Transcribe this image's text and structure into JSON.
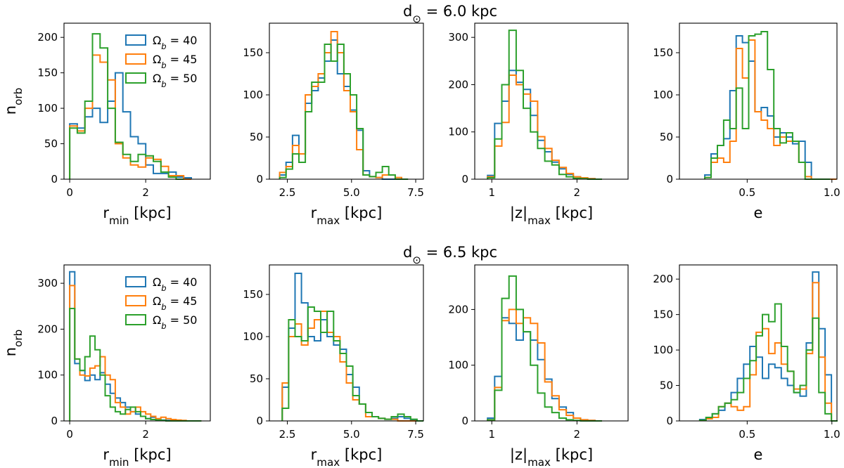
{
  "figure": {
    "row_titles": [
      {
        "prefix": "d",
        "subscript": "⊙",
        "rest": " = 6.0 kpc"
      },
      {
        "prefix": "d",
        "subscript": "⊙",
        "rest": " = 6.5 kpc"
      }
    ],
    "ylabel": {
      "base": "n",
      "sub": "orb"
    },
    "legend": [
      {
        "base": "Ω",
        "sub": "b",
        "rest": " = 40",
        "color": "#1f77b4"
      },
      {
        "base": "Ω",
        "sub": "b",
        "rest": " = 45",
        "color": "#ff7f0e"
      },
      {
        "base": "Ω",
        "sub": "b",
        "rest": " = 50",
        "color": "#2ca02c"
      }
    ]
  },
  "chart_data": [
    {
      "type": "histogram",
      "row": 0,
      "col": 0,
      "xlabel": {
        "base": "r",
        "sub": "min",
        "rest": " [kpc]"
      },
      "xlim": [
        -0.15,
        3.7
      ],
      "ylim": [
        0,
        220
      ],
      "xticks": [
        {
          "v": 0,
          "label": "0"
        },
        {
          "v": 2,
          "label": "2"
        }
      ],
      "yticks": [
        {
          "v": 0,
          "label": "0"
        },
        {
          "v": 50,
          "label": "50"
        },
        {
          "v": 100,
          "label": "100"
        },
        {
          "v": 150,
          "label": "150"
        },
        {
          "v": 200,
          "label": "200"
        }
      ],
      "legend": true,
      "series": [
        {
          "name": "Ωb = 40",
          "color": "#1f77b4",
          "start": 0,
          "width": 0.2,
          "values": [
            78,
            72,
            88,
            100,
            80,
            110,
            150,
            95,
            60,
            50,
            20,
            8,
            8,
            10,
            3,
            2
          ]
        },
        {
          "name": "Ωb = 45",
          "color": "#ff7f0e",
          "start": 0,
          "width": 0.2,
          "values": [
            75,
            68,
            100,
            175,
            165,
            140,
            50,
            30,
            20,
            17,
            30,
            28,
            18,
            5,
            5,
            0
          ]
        },
        {
          "name": "Ωb = 50",
          "color": "#2ca02c",
          "start": 0,
          "width": 0.2,
          "values": [
            72,
            65,
            110,
            205,
            185,
            100,
            52,
            35,
            25,
            35,
            33,
            25,
            10,
            3,
            0
          ]
        }
      ]
    },
    {
      "type": "histogram",
      "row": 0,
      "col": 1,
      "xlabel": {
        "base": "r",
        "sub": "max",
        "rest": " [kpc]"
      },
      "xlim": [
        1.8,
        7.8
      ],
      "ylim": [
        0,
        185
      ],
      "xticks": [
        {
          "v": 2.5,
          "label": "2.5"
        },
        {
          "v": 5.0,
          "label": "5.0"
        },
        {
          "v": 7.5,
          "label": "7.5"
        }
      ],
      "yticks": [
        {
          "v": 0,
          "label": "0"
        },
        {
          "v": 50,
          "label": "50"
        },
        {
          "v": 100,
          "label": "100"
        },
        {
          "v": 150,
          "label": "150"
        }
      ],
      "legend": false,
      "series": [
        {
          "name": "Ωb = 40",
          "color": "#1f77b4",
          "start": 2.2,
          "width": 0.25,
          "values": [
            5,
            20,
            52,
            30,
            90,
            105,
            120,
            140,
            165,
            125,
            110,
            82,
            58,
            10,
            3,
            2,
            0,
            0,
            0,
            0
          ]
        },
        {
          "name": "Ωb = 45",
          "color": "#ff7f0e",
          "start": 2.2,
          "width": 0.25,
          "values": [
            8,
            15,
            40,
            30,
            100,
            110,
            125,
            150,
            175,
            150,
            105,
            80,
            35,
            5,
            3,
            2,
            5,
            5,
            2,
            0
          ]
        },
        {
          "name": "Ωb = 50",
          "color": "#2ca02c",
          "start": 2.2,
          "width": 0.25,
          "values": [
            2,
            12,
            30,
            20,
            80,
            115,
            115,
            160,
            140,
            160,
            125,
            100,
            60,
            5,
            3,
            8,
            15,
            5,
            0,
            0
          ]
        }
      ]
    },
    {
      "type": "histogram",
      "row": 0,
      "col": 2,
      "xlabel": {
        "base": "|z|",
        "sub": "max",
        "rest": " [kpc]"
      },
      "xlim": [
        0.8,
        2.6
      ],
      "ylim": [
        0,
        330
      ],
      "xticks": [
        {
          "v": 1,
          "label": "1"
        },
        {
          "v": 2,
          "label": "2"
        }
      ],
      "yticks": [
        {
          "v": 0,
          "label": "0"
        },
        {
          "v": 100,
          "label": "100"
        },
        {
          "v": 200,
          "label": "200"
        },
        {
          "v": 300,
          "label": "300"
        }
      ],
      "legend": false,
      "series": [
        {
          "name": "Ωb = 40",
          "color": "#1f77b4",
          "start": 0.95,
          "width": 0.084,
          "values": [
            8,
            118,
            165,
            230,
            205,
            190,
            135,
            82,
            58,
            36,
            22,
            10,
            5,
            3,
            1,
            0
          ]
        },
        {
          "name": "Ωb = 45",
          "color": "#ff7f0e",
          "start": 0.95,
          "width": 0.084,
          "values": [
            5,
            70,
            120,
            220,
            200,
            180,
            165,
            90,
            65,
            40,
            25,
            12,
            5,
            3,
            1,
            0
          ]
        },
        {
          "name": "Ωb = 50",
          "color": "#2ca02c",
          "start": 0.95,
          "width": 0.084,
          "values": [
            3,
            85,
            200,
            315,
            230,
            150,
            100,
            65,
            38,
            30,
            10,
            5,
            2,
            1,
            0,
            0
          ]
        }
      ]
    },
    {
      "type": "histogram",
      "row": 0,
      "col": 3,
      "xlabel": {
        "base": "e",
        "sub": "",
        "rest": ""
      },
      "xlim": [
        0.1,
        1.03
      ],
      "ylim": [
        0,
        185
      ],
      "xticks": [
        {
          "v": 0.5,
          "label": "0.5"
        },
        {
          "v": 1.0,
          "label": "1.0"
        }
      ],
      "yticks": [
        {
          "v": 0,
          "label": "0"
        },
        {
          "v": 50,
          "label": "50"
        },
        {
          "v": 100,
          "label": "100"
        },
        {
          "v": 150,
          "label": "150"
        }
      ],
      "legend": false,
      "series": [
        {
          "name": "Ωb = 40",
          "color": "#1f77b4",
          "start": 0.25,
          "width": 0.037,
          "values": [
            5,
            30,
            40,
            48,
            105,
            170,
            162,
            140,
            80,
            85,
            75,
            50,
            55,
            50,
            42,
            45,
            20,
            0,
            0,
            0,
            0
          ]
        },
        {
          "name": "Ωb = 45",
          "color": "#ff7f0e",
          "start": 0.25,
          "width": 0.037,
          "values": [
            2,
            20,
            25,
            20,
            45,
            155,
            120,
            165,
            80,
            70,
            60,
            40,
            50,
            45,
            45,
            20,
            3,
            0,
            0,
            0,
            0
          ]
        },
        {
          "name": "Ωb = 50",
          "color": "#2ca02c",
          "start": 0.25,
          "width": 0.037,
          "values": [
            2,
            25,
            40,
            70,
            60,
            108,
            60,
            170,
            172,
            175,
            130,
            60,
            43,
            55,
            45,
            20,
            0,
            0,
            0,
            0
          ]
        }
      ]
    },
    {
      "type": "histogram",
      "row": 1,
      "col": 0,
      "xlabel": {
        "base": "r",
        "sub": "min",
        "rest": " [kpc]"
      },
      "xlim": [
        -0.15,
        3.7
      ],
      "ylim": [
        0,
        340
      ],
      "xticks": [
        {
          "v": 0,
          "label": "0"
        },
        {
          "v": 2,
          "label": "2"
        }
      ],
      "yticks": [
        {
          "v": 0,
          "label": "0"
        },
        {
          "v": 100,
          "label": "100"
        },
        {
          "v": 200,
          "label": "200"
        },
        {
          "v": 300,
          "label": "300"
        }
      ],
      "legend": true,
      "series": [
        {
          "name": "Ωb = 40",
          "color": "#1f77b4",
          "start": 0,
          "width": 0.1333,
          "values": [
            325,
            125,
            110,
            88,
            100,
            90,
            105,
            80,
            60,
            50,
            40,
            30,
            20,
            15,
            10,
            5,
            8,
            3,
            2,
            1,
            1,
            0,
            0,
            0,
            0,
            0
          ]
        },
        {
          "name": "Ωb = 45",
          "color": "#ff7f0e",
          "start": 0,
          "width": 0.1333,
          "values": [
            295,
            135,
            100,
            98,
            115,
            120,
            140,
            100,
            90,
            40,
            30,
            15,
            20,
            30,
            20,
            15,
            10,
            5,
            8,
            5,
            3,
            2,
            1,
            0,
            0,
            0
          ]
        },
        {
          "name": "Ωb = 50",
          "color": "#2ca02c",
          "start": 0,
          "width": 0.1333,
          "values": [
            245,
            135,
            110,
            140,
            185,
            155,
            100,
            55,
            30,
            20,
            15,
            25,
            30,
            20,
            10,
            5,
            3,
            2,
            1,
            0,
            0,
            0,
            0,
            0,
            0,
            0
          ]
        }
      ]
    },
    {
      "type": "histogram",
      "row": 1,
      "col": 1,
      "xlabel": {
        "base": "r",
        "sub": "max",
        "rest": " [kpc]"
      },
      "xlim": [
        1.8,
        7.8
      ],
      "ylim": [
        0,
        185
      ],
      "xticks": [
        {
          "v": 2.5,
          "label": "2.5"
        },
        {
          "v": 5.0,
          "label": "5.0"
        },
        {
          "v": 7.5,
          "label": "7.5"
        }
      ],
      "yticks": [
        {
          "v": 0,
          "label": "0"
        },
        {
          "v": 50,
          "label": "50"
        },
        {
          "v": 100,
          "label": "100"
        },
        {
          "v": 150,
          "label": "150"
        }
      ],
      "legend": false,
      "series": [
        {
          "name": "Ωb = 40",
          "color": "#1f77b4",
          "start": 2.3,
          "width": 0.25,
          "values": [
            40,
            110,
            175,
            140,
            100,
            95,
            120,
            100,
            90,
            85,
            55,
            40,
            20,
            10,
            5,
            3,
            2,
            3,
            5,
            3,
            1,
            0
          ]
        },
        {
          "name": "Ωb = 45",
          "color": "#ff7f0e",
          "start": 2.3,
          "width": 0.25,
          "values": [
            45,
            100,
            115,
            90,
            110,
            120,
            130,
            105,
            100,
            70,
            45,
            25,
            20,
            5,
            5,
            3,
            2,
            2,
            0,
            0,
            0,
            0
          ]
        },
        {
          "name": "Ωb = 50",
          "color": "#2ca02c",
          "start": 2.3,
          "width": 0.25,
          "values": [
            15,
            120,
            100,
            95,
            135,
            130,
            105,
            130,
            95,
            80,
            65,
            30,
            20,
            10,
            5,
            3,
            2,
            5,
            8,
            5,
            2,
            0
          ]
        }
      ]
    },
    {
      "type": "histogram",
      "row": 1,
      "col": 2,
      "xlabel": {
        "base": "|z|",
        "sub": "max",
        "rest": " [kpc]"
      },
      "xlim": [
        0.8,
        2.6
      ],
      "ylim": [
        0,
        280
      ],
      "xticks": [
        {
          "v": 1,
          "label": "1"
        },
        {
          "v": 2,
          "label": "2"
        }
      ],
      "yticks": [
        {
          "v": 0,
          "label": "0"
        },
        {
          "v": 100,
          "label": "100"
        },
        {
          "v": 200,
          "label": "200"
        }
      ],
      "legend": false,
      "series": [
        {
          "name": "Ωb = 40",
          "color": "#1f77b4",
          "start": 0.95,
          "width": 0.084,
          "values": [
            5,
            80,
            185,
            175,
            145,
            160,
            145,
            110,
            75,
            40,
            25,
            15,
            5,
            2,
            1,
            0
          ]
        },
        {
          "name": "Ωb = 45",
          "color": "#ff7f0e",
          "start": 0.95,
          "width": 0.084,
          "values": [
            2,
            60,
            180,
            200,
            175,
            185,
            175,
            140,
            70,
            45,
            20,
            10,
            5,
            2,
            1,
            0
          ]
        },
        {
          "name": "Ωb = 50",
          "color": "#2ca02c",
          "start": 0.95,
          "width": 0.084,
          "values": [
            2,
            55,
            220,
            260,
            200,
            160,
            100,
            50,
            25,
            15,
            5,
            2,
            1,
            0,
            0,
            0
          ]
        }
      ]
    },
    {
      "type": "histogram",
      "row": 1,
      "col": 3,
      "xlabel": {
        "base": "e",
        "sub": "",
        "rest": ""
      },
      "xlim": [
        0.1,
        1.03
      ],
      "ylim": [
        0,
        220
      ],
      "xticks": [
        {
          "v": 0.5,
          "label": "0.5"
        },
        {
          "v": 1.0,
          "label": "1.0"
        }
      ],
      "yticks": [
        {
          "v": 0,
          "label": "0"
        },
        {
          "v": 50,
          "label": "50"
        },
        {
          "v": 100,
          "label": "100"
        },
        {
          "v": 150,
          "label": "150"
        },
        {
          "v": 200,
          "label": "200"
        }
      ],
      "legend": false,
      "series": [
        {
          "name": "Ωb = 40",
          "color": "#1f77b4",
          "start": 0.22,
          "width": 0.037,
          "values": [
            2,
            5,
            10,
            15,
            25,
            40,
            60,
            80,
            105,
            90,
            60,
            80,
            75,
            60,
            50,
            40,
            35,
            110,
            210,
            130,
            65,
            0
          ]
        },
        {
          "name": "Ωb = 45",
          "color": "#ff7f0e",
          "start": 0.22,
          "width": 0.037,
          "values": [
            1,
            3,
            5,
            20,
            25,
            20,
            15,
            20,
            65,
            125,
            130,
            95,
            110,
            80,
            70,
            45,
            45,
            95,
            195,
            90,
            25,
            0
          ]
        },
        {
          "name": "Ωb = 50",
          "color": "#2ca02c",
          "start": 0.22,
          "width": 0.037,
          "values": [
            1,
            5,
            10,
            20,
            25,
            30,
            40,
            60,
            85,
            120,
            150,
            140,
            165,
            105,
            70,
            40,
            50,
            100,
            145,
            40,
            10,
            0
          ]
        }
      ]
    }
  ]
}
